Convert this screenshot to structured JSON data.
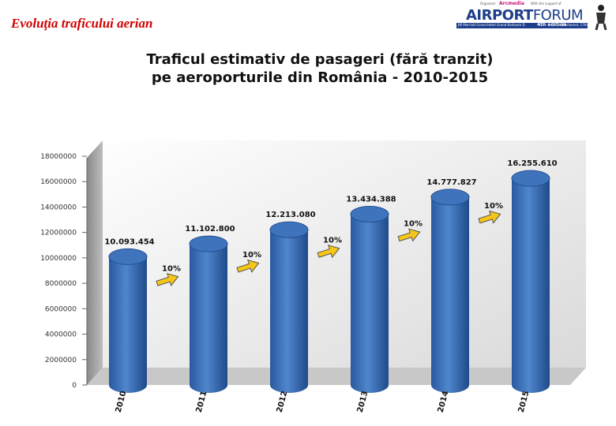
{
  "slide": {
    "title": "Evoluţia traficului aerian"
  },
  "logo": {
    "word_airport": "AIRPORT",
    "word_forum": "FORUM",
    "organizer": "Organizer",
    "organizer_brand": "Arcmedia",
    "support": "With the support of",
    "venue": "JW Marriott Grand Hotel Grand Ballroom D",
    "edition": "4th edition",
    "date": "Bucharest, 17th november 2011"
  },
  "colors": {
    "title": "#d00000",
    "bar": "#3b6fb8",
    "arrow": "#f5c518",
    "wall": "#d8d8d8"
  },
  "chart_data": {
    "type": "bar",
    "title_line1": "Traficul estimativ de pasageri (fără tranzit)",
    "title_line2": "pe aeroporturile din România - 2010-2015",
    "categories": [
      "2010",
      "2011",
      "2012",
      "2013",
      "2014",
      "2015"
    ],
    "values": [
      10093454,
      11102800,
      12213080,
      13434388,
      14777827,
      16255610
    ],
    "value_labels": [
      "10.093.454",
      "11.102.800",
      "12.213.080",
      "13.434.388",
      "14.777.827",
      "16.255.610"
    ],
    "growth_labels": [
      "10%",
      "10%",
      "10%",
      "10%",
      "10%"
    ],
    "ylim": [
      0,
      18000000
    ],
    "yticks": [
      "0",
      "2000000",
      "4000000",
      "6000000",
      "8000000",
      "10000000",
      "12000000",
      "14000000",
      "16000000",
      "18000000"
    ],
    "bar_shape": "cylinder",
    "grid": false
  }
}
